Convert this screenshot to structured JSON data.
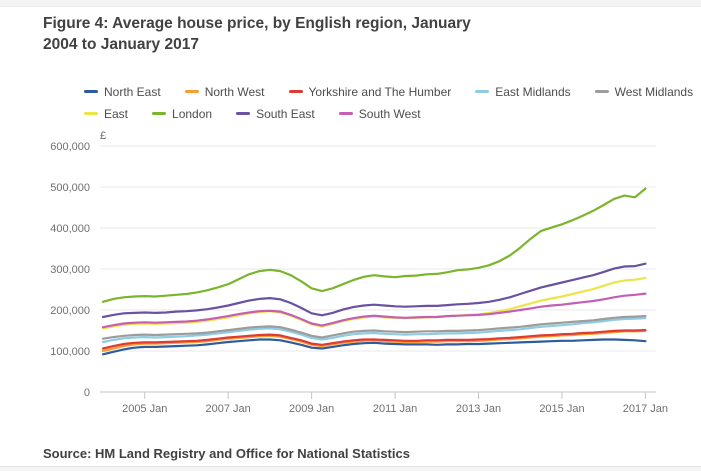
{
  "page": {
    "title_line1": "Figure 4: Average house price, by English region, January",
    "title_line2": "2004 to January 2017",
    "source": "Source: HM Land Registry and Office for National Statistics"
  },
  "colors": {
    "title_text": "#414042",
    "legend_text": "#4d4d4d",
    "axis_text": "#6f6f6f",
    "gridline": "#e8e8e8",
    "axis_line": "#c6c6c6"
  },
  "chart_data": {
    "type": "line",
    "title": "Average house price, by English region, January 2004 to January 2017",
    "unit_label": "£",
    "xlabel": "",
    "ylabel": "£",
    "ylim": [
      0,
      600
    ],
    "grid": "horizontal",
    "legend_position": "top",
    "values_unit": "GBP thousands",
    "x_years": {
      "start": 2004,
      "end": 2017,
      "step": 0.25
    },
    "x_ticks": [
      {
        "year": 2005,
        "label": "2005 Jan"
      },
      {
        "year": 2007,
        "label": "2007 Jan"
      },
      {
        "year": 2009,
        "label": "2009 Jan"
      },
      {
        "year": 2011,
        "label": "2011 Jan"
      },
      {
        "year": 2013,
        "label": "2013 Jan"
      },
      {
        "year": 2015,
        "label": "2015 Jan"
      },
      {
        "year": 2017,
        "label": "2017 Jan"
      }
    ],
    "y_ticks": [
      {
        "value": 0,
        "label": "0"
      },
      {
        "value": 100,
        "label": "100,000"
      },
      {
        "value": 200,
        "label": "200,000"
      },
      {
        "value": 300,
        "label": "300,000"
      },
      {
        "value": 400,
        "label": "400,000"
      },
      {
        "value": 500,
        "label": "500,000"
      },
      {
        "value": 600,
        "label": "600,000"
      }
    ],
    "series": [
      {
        "name": "North East",
        "color": "#2e5b9e",
        "legend_row": 1,
        "values": [
          92,
          98,
          104,
          108,
          110,
          110,
          111,
          112,
          113,
          114,
          116,
          119,
          122,
          124,
          126,
          128,
          128,
          126,
          121,
          115,
          108,
          106,
          110,
          114,
          117,
          119,
          120,
          118,
          117,
          116,
          116,
          116,
          115,
          116,
          116,
          117,
          117,
          118,
          119,
          120,
          121,
          122,
          123,
          124,
          125,
          125,
          126,
          127,
          128,
          128,
          127,
          126,
          124
        ]
      },
      {
        "name": "North West",
        "color": "#f79d31",
        "legend_row": 1,
        "values": [
          100,
          106,
          112,
          116,
          118,
          118,
          119,
          120,
          121,
          122,
          124,
          127,
          130,
          132,
          134,
          136,
          137,
          135,
          129,
          123,
          115,
          112,
          116,
          120,
          123,
          125,
          126,
          124,
          123,
          122,
          122,
          123,
          123,
          124,
          124,
          124,
          125,
          126,
          128,
          129,
          131,
          133,
          135,
          136,
          138,
          139,
          141,
          142,
          144,
          146,
          148,
          148,
          149
        ]
      },
      {
        "name": "Yorkshire and The Humber",
        "color": "#dd3c34",
        "legend_row": 1,
        "values": [
          106,
          112,
          117,
          120,
          121,
          121,
          122,
          123,
          124,
          125,
          127,
          130,
          133,
          135,
          137,
          139,
          140,
          138,
          132,
          126,
          118,
          115,
          119,
          123,
          126,
          128,
          128,
          127,
          126,
          125,
          125,
          126,
          126,
          127,
          127,
          127,
          128,
          129,
          131,
          132,
          134,
          136,
          138,
          139,
          141,
          142,
          144,
          145,
          147,
          149,
          150,
          150,
          151
        ]
      },
      {
        "name": "East Midlands",
        "color": "#8fcbe2",
        "legend_row": 1,
        "values": [
          122,
          127,
          131,
          133,
          134,
          133,
          134,
          135,
          136,
          138,
          140,
          143,
          146,
          149,
          152,
          154,
          155,
          153,
          147,
          140,
          132,
          128,
          132,
          137,
          141,
          143,
          144,
          142,
          141,
          140,
          141,
          141,
          142,
          143,
          143,
          144,
          145,
          147,
          149,
          151,
          153,
          156,
          159,
          161,
          163,
          165,
          168,
          170,
          173,
          176,
          178,
          179,
          180
        ]
      },
      {
        "name": "West Midlands",
        "color": "#9c9c9b",
        "legend_row": 1,
        "values": [
          130,
          134,
          137,
          139,
          140,
          139,
          140,
          141,
          142,
          143,
          145,
          148,
          151,
          154,
          157,
          159,
          160,
          158,
          152,
          145,
          137,
          133,
          138,
          143,
          147,
          149,
          150,
          148,
          147,
          146,
          147,
          148,
          148,
          149,
          149,
          150,
          151,
          153,
          155,
          157,
          159,
          162,
          165,
          167,
          169,
          171,
          173,
          175,
          178,
          181,
          183,
          184,
          185
        ]
      },
      {
        "name": "East",
        "color": "#ece549",
        "legend_row": 2,
        "values": [
          155,
          160,
          164,
          166,
          167,
          166,
          167,
          168,
          169,
          171,
          174,
          178,
          182,
          187,
          192,
          195,
          197,
          194,
          186,
          176,
          165,
          160,
          166,
          173,
          178,
          182,
          184,
          182,
          181,
          180,
          181,
          182,
          183,
          185,
          186,
          188,
          189,
          193,
          197,
          202,
          209,
          216,
          223,
          228,
          233,
          239,
          245,
          251,
          259,
          267,
          272,
          274,
          278
        ]
      },
      {
        "name": "London",
        "color": "#7ab52d",
        "legend_row": 2,
        "values": [
          220,
          227,
          231,
          233,
          234,
          233,
          235,
          237,
          239,
          243,
          248,
          255,
          263,
          275,
          287,
          295,
          298,
          295,
          285,
          270,
          253,
          246,
          253,
          263,
          273,
          281,
          285,
          282,
          280,
          283,
          284,
          287,
          288,
          292,
          297,
          299,
          303,
          309,
          319,
          333,
          352,
          374,
          393,
          401,
          409,
          419,
          430,
          442,
          456,
          471,
          479,
          475,
          496
        ]
      },
      {
        "name": "South East",
        "color": "#6a51a1",
        "legend_row": 2,
        "values": [
          183,
          188,
          192,
          193,
          194,
          193,
          194,
          196,
          197,
          199,
          202,
          206,
          211,
          217,
          223,
          227,
          229,
          226,
          217,
          205,
          192,
          187,
          193,
          201,
          207,
          211,
          213,
          211,
          209,
          208,
          209,
          210,
          210,
          212,
          214,
          215,
          217,
          220,
          225,
          231,
          239,
          247,
          255,
          261,
          267,
          273,
          279,
          285,
          293,
          301,
          306,
          307,
          313
        ]
      },
      {
        "name": "South West",
        "color": "#c45fb3",
        "legend_row": 2,
        "values": [
          158,
          163,
          167,
          169,
          170,
          169,
          170,
          171,
          172,
          174,
          177,
          181,
          185,
          190,
          194,
          197,
          198,
          196,
          188,
          178,
          167,
          162,
          168,
          175,
          180,
          184,
          186,
          184,
          182,
          181,
          182,
          183,
          183,
          185,
          186,
          187,
          188,
          190,
          193,
          196,
          200,
          204,
          208,
          211,
          213,
          216,
          219,
          222,
          226,
          231,
          235,
          237,
          240
        ]
      }
    ]
  }
}
